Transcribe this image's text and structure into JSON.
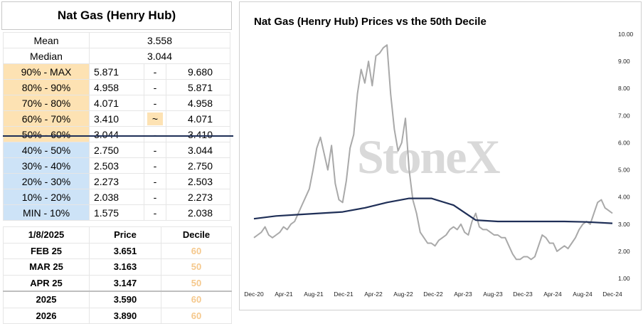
{
  "stats_panel": {
    "title": "Nat Gas (Henry Hub)",
    "mean_label": "Mean",
    "mean_value": "3.558",
    "median_label": "Median",
    "median_value": "3.044",
    "deciles": [
      {
        "label": "90% - MAX",
        "low": "5.871",
        "sep": "-",
        "high": "9.680",
        "tone": "orange"
      },
      {
        "label": "80% - 90%",
        "low": "4.958",
        "sep": "-",
        "high": "5.871",
        "tone": "orange"
      },
      {
        "label": "70% - 80%",
        "low": "4.071",
        "sep": "-",
        "high": "4.958",
        "tone": "orange"
      },
      {
        "label": "60% - 70%",
        "low": "3.410",
        "sep": "~",
        "high": "4.071",
        "tone": "orange"
      },
      {
        "label": "50% - 60%",
        "low": "3.044",
        "sep": "-",
        "high": "3.410",
        "tone": "orange"
      },
      {
        "label": "40% - 50%",
        "low": "2.750",
        "sep": "-",
        "high": "3.044",
        "tone": "blue"
      },
      {
        "label": "30% - 40%",
        "low": "2.503",
        "sep": "-",
        "high": "2.750",
        "tone": "blue"
      },
      {
        "label": "20% - 30%",
        "low": "2.273",
        "sep": "-",
        "high": "2.503",
        "tone": "blue"
      },
      {
        "label": "10% - 20%",
        "low": "2.038",
        "sep": "-",
        "high": "2.273",
        "tone": "blue"
      },
      {
        "label": "MIN - 10%",
        "low": "1.575",
        "sep": "-",
        "high": "2.038",
        "tone": "blue"
      }
    ]
  },
  "forward_table": {
    "headers": [
      "1/8/2025",
      "Price",
      "Decile"
    ],
    "rows": [
      {
        "contract": "FEB 25",
        "price": "3.651",
        "decile": "60"
      },
      {
        "contract": "MAR 25",
        "price": "3.163",
        "decile": "50"
      },
      {
        "contract": "APR 25",
        "price": "3.147",
        "decile": "50"
      },
      {
        "contract": "2025",
        "price": "3.590",
        "decile": "60"
      },
      {
        "contract": "2026",
        "price": "3.890",
        "decile": "60"
      }
    ]
  },
  "colors": {
    "upper_decile_fill": "#fde2b3",
    "lower_decile_fill": "#cde3f7",
    "median_line": "#1f2f57",
    "price_series": "#a9a9a9",
    "decile_text": "#f5c88c"
  },
  "watermark": "StoneX",
  "chart_data": {
    "type": "line",
    "title": "Nat Gas (Henry Hub) Prices vs the 50th Decile",
    "xlabel": "",
    "ylabel": "",
    "x_tick_labels": [
      "Dec-20",
      "Apr-21",
      "Aug-21",
      "Dec-21",
      "Apr-22",
      "Aug-22",
      "Dec-22",
      "Apr-23",
      "Aug-23",
      "Dec-23",
      "Apr-24",
      "Aug-24",
      "Dec-24"
    ],
    "y_tick_labels": [
      "1.00",
      "2.00",
      "3.00",
      "4.00",
      "5.00",
      "6.00",
      "7.00",
      "8.00",
      "9.00",
      "10.00"
    ],
    "ylim": [
      1,
      10
    ],
    "y_axis_side": "right",
    "grid": false,
    "legend": "none",
    "x_unit": "months since Dec-20",
    "series": [
      {
        "role": "price",
        "x": [
          0,
          0.5,
          1,
          1.5,
          2,
          2.5,
          3,
          3.5,
          4,
          4.5,
          5,
          5.5,
          6,
          6.5,
          7,
          7.5,
          8,
          8.5,
          9,
          9.5,
          10,
          10.5,
          11,
          11.5,
          12,
          12.5,
          13,
          13.5,
          14,
          14.5,
          15,
          15.5,
          16,
          16.5,
          17,
          17.5,
          18,
          18.5,
          19,
          19.5,
          20,
          20.5,
          21,
          21.5,
          22,
          22.5,
          23,
          23.5,
          24,
          24.5,
          25,
          25.5,
          26,
          26.5,
          27,
          27.5,
          28,
          28.5,
          29,
          29.5,
          30,
          30.5,
          31,
          31.5,
          32,
          32.5,
          33,
          33.5,
          34,
          34.5,
          35,
          35.5,
          36,
          36.5,
          37,
          37.5,
          38,
          38.5,
          39,
          39.5,
          40,
          40.5,
          41,
          41.5,
          42,
          42.5,
          43,
          43.5,
          44,
          44.5,
          45,
          45.5,
          46,
          46.5,
          47,
          47.5,
          48,
          48.5
        ],
        "values": [
          2.5,
          2.6,
          2.7,
          2.9,
          2.6,
          2.5,
          2.6,
          2.7,
          2.9,
          2.8,
          3.0,
          3.1,
          3.4,
          3.7,
          4.0,
          4.3,
          5.0,
          5.8,
          6.2,
          5.6,
          5.0,
          5.9,
          4.5,
          3.9,
          3.8,
          4.6,
          5.8,
          6.3,
          7.8,
          8.7,
          8.2,
          9.0,
          8.1,
          9.2,
          9.3,
          9.5,
          9.6,
          7.8,
          6.5,
          5.7,
          6.0,
          6.9,
          5.0,
          3.9,
          3.4,
          2.7,
          2.5,
          2.3,
          2.3,
          2.2,
          2.4,
          2.5,
          2.6,
          2.8,
          2.9,
          2.8,
          3.0,
          2.7,
          2.6,
          3.1,
          3.4,
          2.9,
          2.8,
          2.8,
          2.7,
          2.6,
          2.6,
          2.5,
          2.5,
          2.2,
          1.9,
          1.7,
          1.7,
          1.8,
          1.8,
          1.7,
          1.8,
          2.2,
          2.6,
          2.5,
          2.3,
          2.3,
          2.0,
          2.1,
          2.2,
          2.1,
          2.3,
          2.5,
          2.8,
          3.0,
          3.1,
          3.0,
          3.4,
          3.8,
          3.9,
          3.6,
          3.5,
          3.4
        ]
      },
      {
        "role": "50th decile",
        "x": [
          0,
          3,
          6,
          9,
          12,
          15,
          18,
          21,
          24,
          27,
          30,
          33,
          36,
          39,
          42,
          45,
          48.5
        ],
        "values": [
          3.2,
          3.3,
          3.35,
          3.4,
          3.45,
          3.6,
          3.8,
          3.95,
          3.95,
          3.7,
          3.15,
          3.1,
          3.1,
          3.1,
          3.1,
          3.08,
          3.03
        ]
      }
    ]
  }
}
